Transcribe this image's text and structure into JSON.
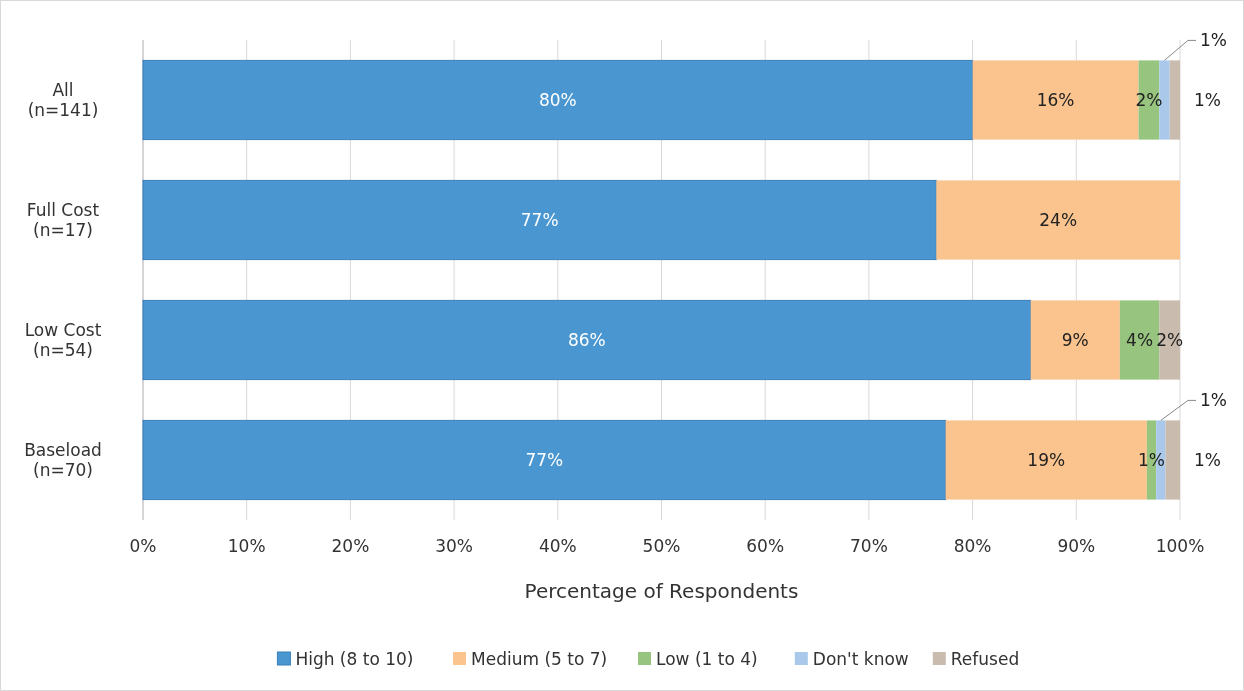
{
  "chart_data": {
    "type": "bar",
    "orientation": "horizontal",
    "stacked": true,
    "xlabel": "Percentage of Respondents",
    "categories": [
      "All\n(n=141)",
      "Full Cost\n(n=17)",
      "Low Cost\n(n=54)",
      "Baseload\n(n=70)"
    ],
    "series": [
      {
        "name": "High (8 to 10)",
        "color": "#4a96d0",
        "values": [
          80,
          76.5,
          85.6,
          77.4
        ],
        "value_labels": [
          "80%",
          "77%",
          "86%",
          "77%"
        ]
      },
      {
        "name": "Medium (5 to 7)",
        "color": "#fbc48f",
        "values": [
          16,
          23.5,
          8.6,
          19.4
        ],
        "value_labels": [
          "16%",
          "24%",
          "9%",
          "19%"
        ]
      },
      {
        "name": "Low (1 to 4)",
        "color": "#97c47e",
        "values": [
          2,
          null,
          3.8,
          0.9
        ],
        "value_labels": [
          "2%",
          null,
          "4%",
          "1%"
        ]
      },
      {
        "name": "Don't know",
        "color": "#a9c8ea",
        "values": [
          1,
          null,
          null,
          0.9
        ],
        "value_labels": [
          "1%",
          null,
          null,
          "1%"
        ]
      },
      {
        "name": "Refused",
        "color": "#c9bcae",
        "values": [
          1,
          null,
          2,
          1.4
        ],
        "value_labels": [
          "1%",
          null,
          "2%",
          "1%"
        ]
      }
    ],
    "xlim": [
      0,
      100
    ],
    "xticks": [
      {
        "value": 0,
        "label": "0%"
      },
      {
        "value": 10,
        "label": "10%"
      },
      {
        "value": 20,
        "label": "20%"
      },
      {
        "value": 30,
        "label": "30%"
      },
      {
        "value": 40,
        "label": "40%"
      },
      {
        "value": 50,
        "label": "50%"
      },
      {
        "value": 60,
        "label": "60%"
      },
      {
        "value": 70,
        "label": "70%"
      },
      {
        "value": 80,
        "label": "80%"
      },
      {
        "value": 90,
        "label": "90%"
      },
      {
        "value": 100,
        "label": "100%"
      }
    ],
    "grid": "x",
    "legend": "bottom"
  }
}
